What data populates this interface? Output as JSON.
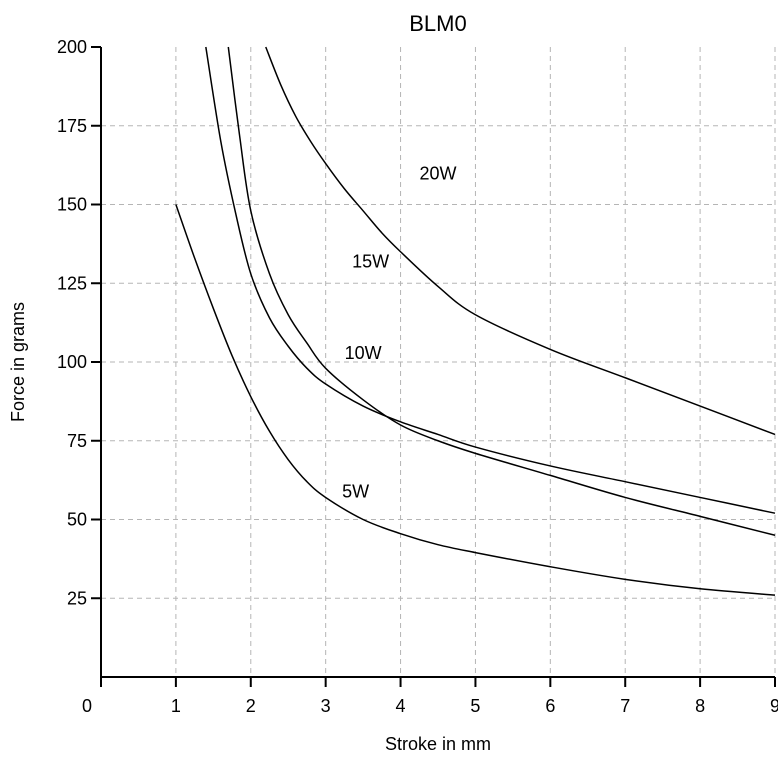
{
  "chart_data": {
    "type": "line",
    "title": "BLM0",
    "xlabel": "Stroke in mm",
    "ylabel": "Force in grams",
    "xlim": [
      0,
      9
    ],
    "ylim": [
      0,
      200
    ],
    "x_ticks": [
      0,
      1,
      2,
      3,
      4,
      5,
      6,
      7,
      8,
      9
    ],
    "y_ticks": [
      25,
      50,
      75,
      100,
      125,
      150,
      175,
      200
    ],
    "grid": true,
    "series": [
      {
        "name": "5W",
        "x": [
          1.0,
          1.25,
          1.5,
          1.75,
          2.0,
          2.25,
          2.5,
          2.75,
          3.0,
          3.5,
          4.0,
          4.5,
          5.0,
          6.0,
          7.0,
          8.0,
          9.0
        ],
        "y": [
          150,
          133,
          117,
          102,
          89,
          78,
          69,
          62,
          57,
          50,
          45.5,
          42,
          39.5,
          35,
          31,
          28,
          26
        ]
      },
      {
        "name": "10W",
        "x": [
          1.7,
          1.85,
          2.0,
          2.25,
          2.5,
          2.75,
          3.0,
          3.5,
          4.0,
          4.5,
          5.0,
          6.0,
          7.0,
          8.0,
          9.0
        ],
        "y": [
          200,
          172,
          148,
          128,
          115,
          106,
          98,
          88,
          80,
          75,
          71,
          64,
          57,
          51,
          45
        ]
      },
      {
        "name": "15W",
        "x": [
          1.4,
          1.6,
          1.8,
          2.0,
          2.25,
          2.5,
          2.75,
          3.0,
          3.5,
          4.0,
          4.5,
          5.0,
          6.0,
          7.0,
          8.0,
          9.0
        ],
        "y": [
          200,
          170,
          147,
          128,
          114,
          105,
          98,
          93,
          86,
          81,
          77,
          73,
          67,
          62,
          57,
          52
        ]
      },
      {
        "name": "20W",
        "x": [
          2.2,
          2.4,
          2.6,
          2.8,
          3.0,
          3.25,
          3.5,
          3.75,
          4.0,
          4.5,
          5.0,
          6.0,
          7.0,
          8.0,
          9.0
        ],
        "y": [
          200,
          188,
          178,
          170,
          163,
          155,
          148,
          141,
          135,
          124,
          115,
          104,
          95,
          86,
          77
        ]
      }
    ],
    "labels": [
      {
        "text": "20W",
        "x": 4.5,
        "y": 158
      },
      {
        "text": "15W",
        "x": 3.6,
        "y": 130
      },
      {
        "text": "10W",
        "x": 3.5,
        "y": 101
      },
      {
        "text": "5W",
        "x": 3.4,
        "y": 57
      }
    ]
  }
}
